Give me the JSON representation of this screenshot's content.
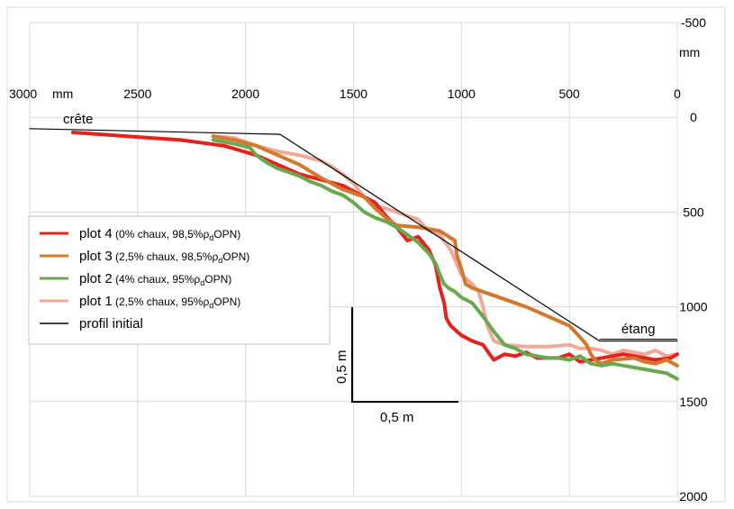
{
  "chart_data": {
    "type": "line",
    "x_axis": {
      "ticks": [
        3000,
        2500,
        2000,
        1500,
        1000,
        500,
        0
      ],
      "unit_label": "mm",
      "reversed": true,
      "range": [
        3000,
        0
      ]
    },
    "y_axis": {
      "ticks": [
        -500,
        0,
        500,
        1000,
        1500,
        2000
      ],
      "unit_label": "mm",
      "reversed": true,
      "range": [
        -500,
        2000
      ]
    },
    "annotations": {
      "crest": "crête",
      "pond": "étang",
      "scale_v": "0,5 m",
      "scale_h": "0,5 m"
    },
    "legend": {
      "placement": "middle-left",
      "entries": [
        {
          "name": "plot 4",
          "detail": "(0% chaux, 98,5%",
          "rho": "ρ",
          "sub": "d",
          "tail": "OPN)",
          "color": "#e8201c"
        },
        {
          "name": "plot 3",
          "detail": "(2,5% chaux, 98,5%",
          "rho": "ρ",
          "sub": "d",
          "tail": "OPN)",
          "color": "#d4762c"
        },
        {
          "name": "plot 2",
          "detail": "(4% chaux, 95%",
          "rho": "ρ",
          "sub": "d",
          "tail": "OPN)",
          "color": "#6aa84f"
        },
        {
          "name": "plot 1",
          "detail": "(2,5% chaux, 95%",
          "rho": "ρ",
          "sub": "d",
          "tail": "OPN)",
          "color": "#f0a899"
        },
        {
          "name": "profil initial",
          "detail": "",
          "rho": "",
          "sub": "",
          "tail": "",
          "color": "#000000"
        }
      ]
    },
    "series": [
      {
        "name": "profil initial",
        "color": "#000000",
        "x": [
          3000,
          1840,
          360,
          0
        ],
        "y": [
          60,
          90,
          1180,
          1180
        ]
      },
      {
        "name": "plot 4",
        "color": "#e8201c",
        "x": [
          2800,
          2550,
          2300,
          2100,
          1950,
          1850,
          1750,
          1650,
          1550,
          1450,
          1400,
          1350,
          1300,
          1250,
          1200,
          1150,
          1120,
          1100,
          1080,
          1070,
          1050,
          1000,
          950,
          900,
          850,
          800,
          750,
          700,
          650,
          550,
          500,
          450,
          300,
          250,
          150,
          100,
          30,
          0
        ],
        "y": [
          80,
          100,
          120,
          150,
          200,
          250,
          300,
          330,
          360,
          420,
          450,
          520,
          580,
          650,
          630,
          700,
          780,
          900,
          980,
          1060,
          1100,
          1150,
          1180,
          1200,
          1280,
          1250,
          1260,
          1240,
          1270,
          1270,
          1250,
          1290,
          1260,
          1250,
          1270,
          1280,
          1270,
          1250
        ]
      },
      {
        "name": "plot 3",
        "color": "#d4762c",
        "x": [
          2150,
          2050,
          1950,
          1850,
          1750,
          1650,
          1550,
          1450,
          1400,
          1350,
          1300,
          1200,
          1100,
          1030,
          1020,
          1000,
          980,
          950,
          900,
          800,
          700,
          600,
          500,
          450,
          420,
          400,
          380,
          350,
          300,
          200,
          150,
          100,
          50,
          0
        ],
        "y": [
          100,
          120,
          150,
          200,
          250,
          320,
          380,
          420,
          480,
          530,
          570,
          580,
          600,
          650,
          730,
          800,
          880,
          900,
          920,
          960,
          1000,
          1050,
          1100,
          1160,
          1200,
          1250,
          1280,
          1300,
          1280,
          1270,
          1290,
          1300,
          1280,
          1310
        ]
      },
      {
        "name": "plot 2",
        "color": "#6aa84f",
        "x": [
          2150,
          2050,
          1980,
          1950,
          1900,
          1850,
          1800,
          1750,
          1700,
          1650,
          1600,
          1550,
          1500,
          1450,
          1400,
          1350,
          1300,
          1250,
          1200,
          1150,
          1120,
          1100,
          1080,
          1060,
          1030,
          1000,
          950,
          900,
          850,
          800,
          750,
          700,
          650,
          600,
          550,
          500,
          450,
          400,
          350,
          300,
          250,
          200,
          150,
          100,
          50,
          0
        ],
        "y": [
          120,
          140,
          160,
          200,
          240,
          270,
          290,
          310,
          340,
          360,
          390,
          410,
          450,
          500,
          530,
          550,
          580,
          620,
          660,
          720,
          770,
          830,
          880,
          900,
          920,
          950,
          980,
          1050,
          1130,
          1200,
          1220,
          1250,
          1260,
          1270,
          1270,
          1280,
          1260,
          1300,
          1310,
          1300,
          1310,
          1320,
          1330,
          1340,
          1350,
          1380
        ]
      },
      {
        "name": "plot 1",
        "color": "#f0a899",
        "x": [
          2150,
          2050,
          1950,
          1850,
          1750,
          1650,
          1600,
          1550,
          1500,
          1450,
          1400,
          1350,
          1300,
          1250,
          1200,
          1150,
          1100,
          1050,
          1000,
          950,
          920,
          900,
          880,
          850,
          800,
          700,
          600,
          500,
          450,
          400,
          350,
          300,
          250,
          200,
          150,
          100,
          50,
          0
        ],
        "y": [
          100,
          110,
          150,
          180,
          200,
          230,
          260,
          300,
          350,
          420,
          470,
          480,
          500,
          520,
          540,
          600,
          620,
          700,
          830,
          880,
          920,
          1000,
          1100,
          1180,
          1200,
          1210,
          1210,
          1200,
          1220,
          1220,
          1230,
          1250,
          1230,
          1240,
          1250,
          1230,
          1260,
          1250
        ]
      }
    ]
  }
}
